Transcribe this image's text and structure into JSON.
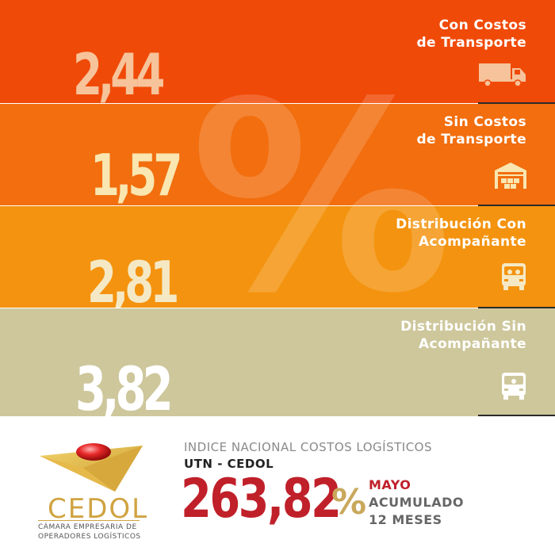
{
  "symbol": "%",
  "bands": [
    {
      "value": "2,44",
      "label_line1": "Con Costos",
      "label_line2": "de Transporte",
      "icon": "truck-icon",
      "color": "#f04a08",
      "value_color": "#f6c39a"
    },
    {
      "value": "1,57",
      "label_line1": "Sin Costos",
      "label_line2": "de Transporte",
      "icon": "warehouse-icon",
      "color": "#f26e0e",
      "value_color": "#f9e6b0"
    },
    {
      "value": "2,81",
      "label_line1": "Distribución Con",
      "label_line2": "Acompañante",
      "icon": "van-icon",
      "color": "#f4930f",
      "value_color": "#f5e9c5"
    },
    {
      "value": "3,82",
      "label_line1": "Distribución Sin",
      "label_line2": "Acompañante",
      "icon": "van-icon",
      "color": "#cec79c",
      "value_color": "#ffffff"
    }
  ],
  "footer": {
    "title": "INDICE NACIONAL COSTOS LOGÍSTICOS",
    "subtitle": "UTN - CEDOL",
    "total_value": "263,82",
    "total_symbol": "%",
    "month": "MAYO",
    "period_line1": "ACUMULADO",
    "period_line2": "12 MESES"
  },
  "logo": {
    "name": "CEDOL",
    "sub_line1": "CÁMARA EMPRESARIA DE",
    "sub_line2": "OPERADORES LOGÍSTICOS"
  },
  "colors": {
    "accent_red": "#c0202a",
    "gold": "#d0a341"
  }
}
